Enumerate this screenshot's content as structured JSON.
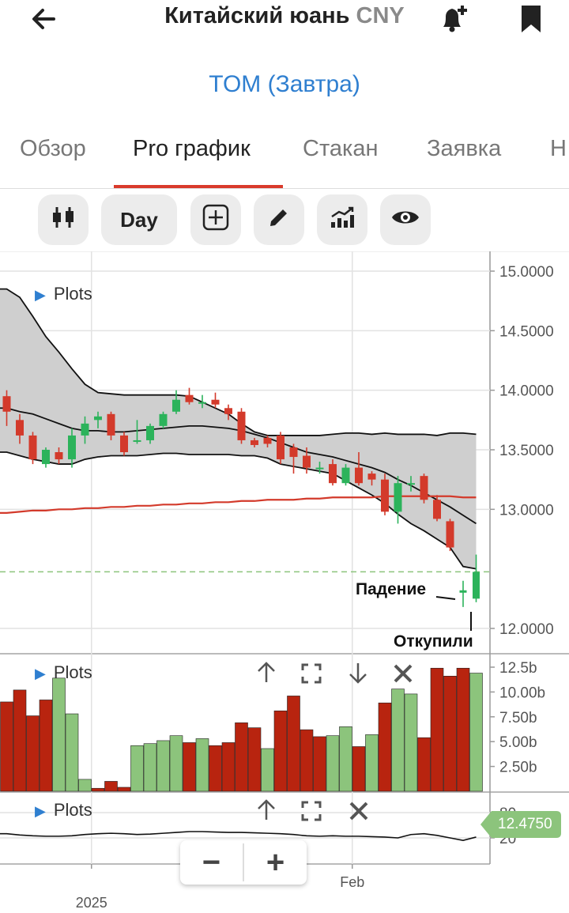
{
  "header": {
    "title": "Китайский юань",
    "code": "CNY",
    "subtitle": "TOM (Завтра)"
  },
  "tabs": [
    {
      "label": "Обзор",
      "active": false
    },
    {
      "label": "Pro график",
      "active": true
    },
    {
      "label": "Стакан",
      "active": false
    },
    {
      "label": "Заявка",
      "active": false
    },
    {
      "label": "Н",
      "active": false
    }
  ],
  "toolbar": {
    "chart_type_icon": "candlestick-icon",
    "interval_label": "Day",
    "add_icon": "plus-box-icon",
    "draw_icon": "pencil-icon",
    "indicators_icon": "trend-chart-icon",
    "visibility_icon": "eye-icon"
  },
  "colors": {
    "up": "#2cb35b",
    "down": "#d33a2b",
    "band": "#cfcfcf",
    "ma": "#d33a2b",
    "volume_up": "#8cc47c",
    "volume_down": "#b8240f",
    "accent_blue": "#2f7fd0",
    "price_tag": "#8cc47c"
  },
  "panes": {
    "main_label": "Plots",
    "volume_label": "Plots",
    "oscillator_label": "Plots"
  },
  "annotations": {
    "drop": "Падение",
    "buyback": "Откупили"
  },
  "zoom": {
    "minus": "−",
    "plus": "+"
  },
  "chart_data": {
    "type": "candlestick",
    "price_axis": {
      "ticks": [
        "15.0000",
        "14.5000",
        "14.0000",
        "13.5000",
        "13.0000",
        "12.0000"
      ],
      "tick_values": [
        15.0,
        14.5,
        14.0,
        13.5,
        13.0,
        12.0
      ],
      "ylim": [
        11.9,
        15.15
      ]
    },
    "last_price": "12.4750",
    "last_price_value": 12.475,
    "x_labels": [
      {
        "label": "2025",
        "index": 6.5
      },
      {
        "label": "Feb",
        "index": 26.5
      }
    ],
    "candles": [
      [
        13.95,
        13.82,
        14.0,
        13.7
      ],
      [
        13.75,
        13.62,
        13.8,
        13.55
      ],
      [
        13.62,
        13.42,
        13.65,
        13.38
      ],
      [
        13.38,
        13.5,
        13.52,
        13.35
      ],
      [
        13.48,
        13.42,
        13.52,
        13.38
      ],
      [
        13.42,
        13.62,
        13.68,
        13.35
      ],
      [
        13.62,
        13.72,
        13.78,
        13.55
      ],
      [
        13.75,
        13.78,
        13.82,
        13.68
      ],
      [
        13.8,
        13.62,
        13.82,
        13.58
      ],
      [
        13.62,
        13.48,
        13.65,
        13.45
      ],
      [
        13.58,
        13.58,
        13.75,
        13.55
      ],
      [
        13.58,
        13.7,
        13.72,
        13.55
      ],
      [
        13.7,
        13.8,
        13.82,
        13.68
      ],
      [
        13.82,
        13.92,
        14.0,
        13.8
      ],
      [
        13.96,
        13.9,
        14.02,
        13.88
      ],
      [
        13.9,
        13.9,
        13.96,
        13.85
      ],
      [
        13.92,
        13.88,
        13.98,
        13.85
      ],
      [
        13.85,
        13.8,
        13.88,
        13.75
      ],
      [
        13.82,
        13.58,
        13.85,
        13.55
      ],
      [
        13.58,
        13.54,
        13.6,
        13.52
      ],
      [
        13.6,
        13.55,
        13.62,
        13.52
      ],
      [
        13.62,
        13.42,
        13.65,
        13.38
      ],
      [
        13.52,
        13.44,
        13.55,
        13.3
      ],
      [
        13.45,
        13.35,
        13.52,
        13.3
      ],
      [
        13.35,
        13.35,
        13.4,
        13.3
      ],
      [
        13.38,
        13.22,
        13.42,
        13.2
      ],
      [
        13.22,
        13.35,
        13.38,
        13.2
      ],
      [
        13.35,
        13.22,
        13.48,
        13.2
      ],
      [
        13.3,
        13.25,
        13.32,
        13.2
      ],
      [
        13.25,
        12.98,
        13.3,
        12.95
      ],
      [
        12.98,
        13.22,
        13.28,
        12.88
      ],
      [
        13.22,
        13.22,
        13.28,
        13.15
      ],
      [
        13.28,
        13.08,
        13.3,
        13.05
      ],
      [
        13.08,
        12.92,
        13.12,
        12.9
      ],
      [
        12.9,
        12.68,
        12.92,
        12.65
      ],
      [
        12.3,
        12.32,
        12.4,
        12.18
      ],
      [
        12.25,
        12.475,
        12.62,
        12.22
      ]
    ],
    "band_upper": [
      14.85,
      14.78,
      14.62,
      14.45,
      14.32,
      14.18,
      14.05,
      13.98,
      13.97,
      13.96,
      13.96,
      13.96,
      13.96,
      13.96,
      13.95,
      13.9,
      13.85,
      13.8,
      13.72,
      13.65,
      13.62,
      13.62,
      13.62,
      13.62,
      13.62,
      13.63,
      13.64,
      13.64,
      13.63,
      13.64,
      13.63,
      13.63,
      13.63,
      13.62,
      13.64,
      13.64,
      13.63
    ],
    "band_middle": [
      13.85,
      13.82,
      13.8,
      13.76,
      13.72,
      13.68,
      13.66,
      13.66,
      13.65,
      13.65,
      13.66,
      13.67,
      13.68,
      13.69,
      13.7,
      13.7,
      13.69,
      13.68,
      13.66,
      13.63,
      13.6,
      13.56,
      13.52,
      13.48,
      13.46,
      13.44,
      13.41,
      13.38,
      13.35,
      13.31,
      13.25,
      13.2,
      13.14,
      13.08,
      13.02,
      12.95,
      12.88
    ],
    "band_lower": [
      13.48,
      13.45,
      13.42,
      13.4,
      13.38,
      13.38,
      13.42,
      13.44,
      13.45,
      13.45,
      13.45,
      13.46,
      13.47,
      13.47,
      13.46,
      13.46,
      13.46,
      13.46,
      13.45,
      13.45,
      13.43,
      13.38,
      13.36,
      13.34,
      13.32,
      13.3,
      13.24,
      13.18,
      13.12,
      13.05,
      12.96,
      12.88,
      12.82,
      12.75,
      12.68,
      12.52,
      12.5
    ],
    "ma_line": [
      12.97,
      12.98,
      12.99,
      12.99,
      13.0,
      13.0,
      13.01,
      13.01,
      13.02,
      13.02,
      13.03,
      13.03,
      13.04,
      13.04,
      13.05,
      13.05,
      13.06,
      13.06,
      13.07,
      13.07,
      13.08,
      13.08,
      13.08,
      13.09,
      13.09,
      13.1,
      13.1,
      13.1,
      13.1,
      13.11,
      13.11,
      13.11,
      13.11,
      13.11,
      13.11,
      13.1,
      13.1
    ],
    "volume": {
      "axis_ticks": [
        "12.5b",
        "10.00b",
        "7.50b",
        "5.00b",
        "2.50b"
      ],
      "tick_values": [
        12.5,
        10.0,
        7.5,
        5.0,
        2.5
      ],
      "values_b": [
        9.0,
        10.2,
        7.6,
        9.2,
        11.4,
        7.8,
        1.2,
        0.3,
        1.0,
        0.4,
        4.6,
        4.8,
        5.1,
        5.6,
        4.9,
        5.3,
        4.6,
        4.9,
        6.9,
        6.4,
        4.3,
        8.1,
        9.6,
        6.2,
        5.5,
        5.6,
        6.5,
        4.5,
        5.7,
        8.9,
        10.3,
        9.8,
        5.4,
        12.4,
        11.6,
        12.4,
        11.9
      ],
      "up": [
        false,
        false,
        false,
        false,
        true,
        true,
        true,
        false,
        false,
        false,
        true,
        true,
        true,
        true,
        false,
        true,
        false,
        false,
        false,
        false,
        true,
        false,
        false,
        false,
        false,
        true,
        true,
        false,
        true,
        false,
        true,
        true,
        false,
        false,
        false,
        false,
        true
      ]
    },
    "oscillator": {
      "axis_ticks": [
        "80",
        "20"
      ],
      "tick_values": [
        80,
        20
      ],
      "values": [
        30,
        27,
        25,
        24,
        24,
        25,
        28,
        30,
        31,
        30,
        28,
        29,
        31,
        33,
        35,
        35,
        34,
        33,
        33,
        32,
        31,
        30,
        28,
        25,
        24,
        25,
        24,
        24,
        23,
        22,
        20,
        28,
        30,
        26,
        20,
        14,
        22
      ]
    }
  }
}
